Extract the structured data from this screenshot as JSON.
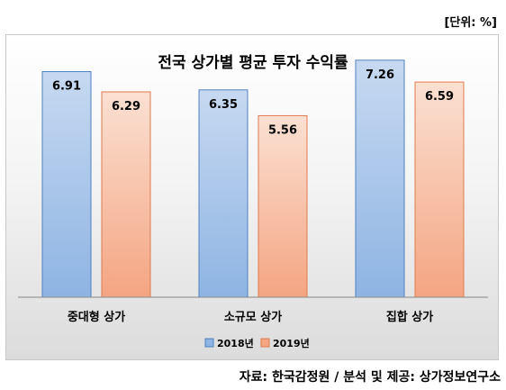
{
  "unit_label": "[단위: %]",
  "source_text": "자료: 한국감정원 / 분석 및 제공: 상가정보연구소",
  "colors": {
    "series_2018_top": "#c7d9f1",
    "series_2018_bottom": "#8eb4e3",
    "series_2018_border": "#4f81bd",
    "series_2019_top": "#fbe0d2",
    "series_2019_bottom": "#f4a582",
    "series_2019_border": "#e07b4f"
  },
  "chart_data": {
    "type": "bar",
    "title": "전국 상가별 평균 투자 수익률",
    "categories": [
      "중대형 상가",
      "소규모 상가",
      "집합 상가"
    ],
    "series": [
      {
        "name": "2018년",
        "values": [
          6.91,
          6.35,
          7.26
        ]
      },
      {
        "name": "2019년",
        "values": [
          6.29,
          5.56,
          6.59
        ]
      }
    ],
    "ylim": [
      0,
      8
    ],
    "legend_position": "bottom",
    "data_labels": true,
    "grid": false
  }
}
